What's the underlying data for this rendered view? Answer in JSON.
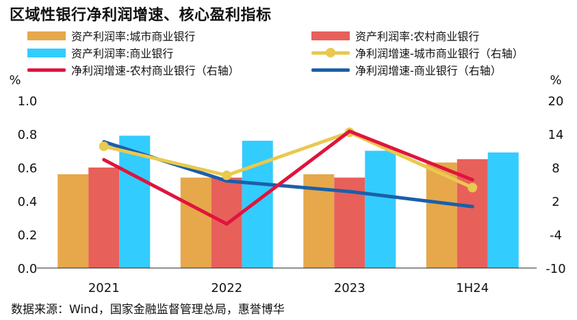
{
  "title": "区域性银行净利润增速、核心盈利指标",
  "source": "数据来源：Wind，国家金融监督管理总局，惠誉博华",
  "colors": {
    "bar_city": "#E6A84A",
    "bar_rural": "#E8605A",
    "bar_commercial": "#33CCFF",
    "line_city": "#E9C94E",
    "line_rural": "#E0143C",
    "line_commercial": "#1B5FAA"
  },
  "chart_data": {
    "type": "bar",
    "categories": [
      "2021",
      "2022",
      "2023",
      "1H24"
    ],
    "y_left": {
      "unit": "%",
      "ylim": [
        0.0,
        1.0
      ],
      "ticks": [
        "0.0",
        "0.2",
        "0.4",
        "0.6",
        "0.8",
        "1.0"
      ]
    },
    "y_right": {
      "unit": "%",
      "ylim": [
        -10,
        20
      ],
      "ticks": [
        "-10",
        "-4",
        "2",
        "8",
        "14",
        "20"
      ]
    },
    "grid": false,
    "bar_series": [
      {
        "name": "资产利润率:城市商业银行",
        "values": [
          0.56,
          0.54,
          0.56,
          0.63
        ]
      },
      {
        "name": "资产利润率:农村商业银行",
        "values": [
          0.6,
          0.54,
          0.54,
          0.65
        ]
      },
      {
        "name": "资产利润率:商业银行",
        "values": [
          0.79,
          0.76,
          0.7,
          0.69
        ]
      }
    ],
    "line_series": [
      {
        "name": "净利润增速-城市商业银行（右轴）",
        "values": [
          11.8,
          6.6,
          14.3,
          4.4
        ],
        "markers": true
      },
      {
        "name": "净利润增速-农村商业银行（右轴）",
        "values": [
          9.4,
          -2.1,
          14.5,
          5.8
        ],
        "markers": false
      },
      {
        "name": "净利润增速-商业银行（右轴）",
        "values": [
          12.6,
          5.6,
          3.7,
          1.0
        ],
        "markers": false
      }
    ]
  }
}
